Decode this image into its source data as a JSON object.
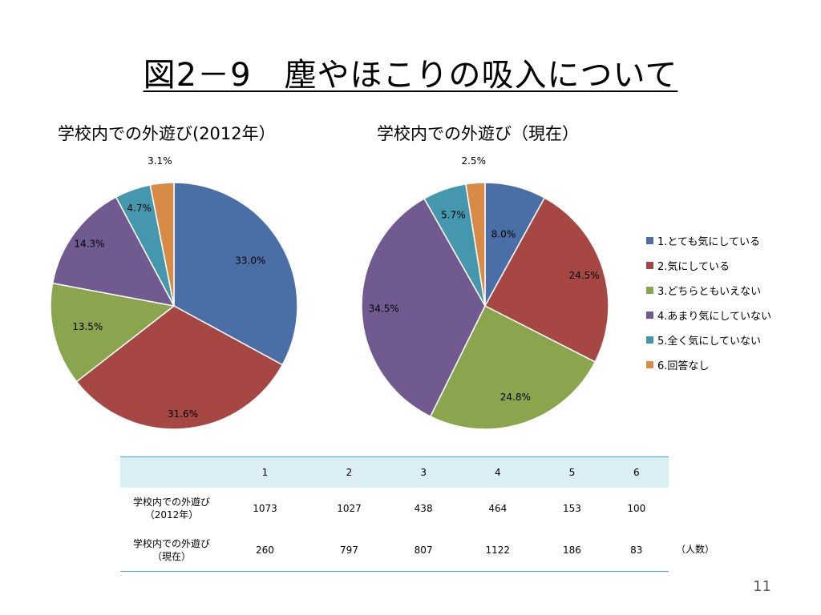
{
  "slide": {
    "title": "図2－9　塵やほこりの吸入について",
    "page_number": "11",
    "unit_label": "（人数）"
  },
  "legend": [
    {
      "label": "1.とても気にしている",
      "color": "#4a6fa6"
    },
    {
      "label": "2.気にしている",
      "color": "#a74744"
    },
    {
      "label": "3.どちらともいえない",
      "color": "#8aa54d"
    },
    {
      "label": "4.あまり気にしていない",
      "color": "#715a90"
    },
    {
      "label": "5.全く気にしていない",
      "color": "#4597ad"
    },
    {
      "label": "6.回答なし",
      "color": "#d88a47"
    }
  ],
  "chart_data": [
    {
      "type": "pie",
      "title": "学校内での外遊び(2012年）",
      "categories": [
        "1.とても気にしている",
        "2.気にしている",
        "3.どちらともいえない",
        "4.あまり気にしていない",
        "5.全く気にしていない",
        "6.回答なし"
      ],
      "values": [
        33.0,
        31.6,
        13.5,
        14.3,
        4.7,
        3.1
      ],
      "data_labels": [
        "33.0%",
        "31.6%",
        "13.5%",
        "14.3%",
        "4.7%",
        "3.1%"
      ]
    },
    {
      "type": "pie",
      "title": "学校内での外遊び（現在）",
      "categories": [
        "1.とても気にしている",
        "2.気にしている",
        "3.どちらともいえない",
        "4.あまり気にしていない",
        "5.全く気にしていない",
        "6.回答なし"
      ],
      "values": [
        8.0,
        24.5,
        24.8,
        34.5,
        5.7,
        2.5
      ],
      "data_labels": [
        "8.0%",
        "24.5%",
        "24.8%",
        "34.5%",
        "5.7%",
        "2.5%"
      ]
    },
    {
      "type": "table",
      "header": [
        "",
        "1",
        "2",
        "3",
        "4",
        "5",
        "6"
      ],
      "rows": [
        {
          "label": [
            "学校内での外遊び",
            "（2012年）"
          ],
          "values": [
            "1073",
            "1027",
            "438",
            "464",
            "153",
            "100"
          ]
        },
        {
          "label": [
            "学校内での外遊び",
            "（現在）"
          ],
          "values": [
            "260",
            "797",
            "807",
            "1122",
            "186",
            "83"
          ]
        }
      ]
    }
  ]
}
